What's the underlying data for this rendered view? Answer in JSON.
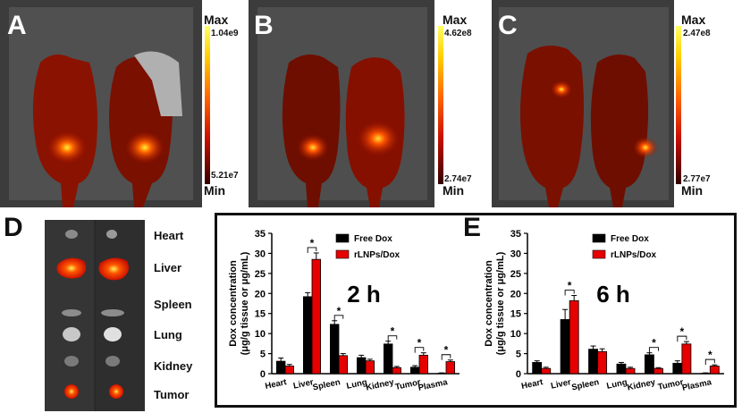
{
  "panels": {
    "A": {
      "letter": "A",
      "max_label": "Max",
      "min_label": "Min",
      "max_value": "1.04e9",
      "min_value": "5.21e7"
    },
    "B": {
      "letter": "B",
      "max_label": "Max",
      "min_label": "Min",
      "max_value": "4.62e8",
      "min_value": "2.74e7"
    },
    "C": {
      "letter": "C",
      "max_label": "Max",
      "min_label": "Min",
      "max_value": "2.47e8",
      "min_value": "2.77e7"
    },
    "D": {
      "letter": "D",
      "organs": [
        "Heart",
        "Liver",
        "Spleen",
        "Lung",
        "Kidney",
        "Tumor"
      ]
    },
    "E": {
      "letter": "E"
    }
  },
  "colors": {
    "free": "#000000",
    "rlnp": "#e60000",
    "heat_hot": "#ffee33",
    "heat_mid": "#dd2200",
    "heat_low": "#5a0000"
  },
  "chart_data": [
    {
      "type": "bar",
      "title": "2 h",
      "ylabel": "Dox concentration (μg/g tissue or μg/mL)",
      "ylabel_line1": "Dox concentration",
      "ylabel_line2": "(μg/g tissue or μg/mL)",
      "ylim": [
        0,
        35
      ],
      "yticks": [
        0,
        5,
        10,
        15,
        20,
        25,
        30,
        35
      ],
      "categories": [
        "Heart",
        "Liver",
        "Spleen",
        "Lung",
        "Kidney",
        "Tumor",
        "Plasma"
      ],
      "series": [
        {
          "name": "Free Dox",
          "values": [
            3.1,
            19.2,
            12.3,
            4.0,
            7.4,
            1.6,
            0.1
          ],
          "errors": [
            0.8,
            1.0,
            0.9,
            0.6,
            0.7,
            0.4,
            0.1
          ]
        },
        {
          "name": "rLNPs/Dox",
          "values": [
            1.9,
            28.5,
            4.5,
            3.2,
            1.5,
            4.6,
            3.0
          ],
          "errors": [
            0.4,
            1.6,
            0.5,
            0.4,
            0.3,
            0.6,
            0.4
          ]
        }
      ],
      "significance": [
        "*",
        "*",
        "*",
        "*",
        "*"
      ],
      "significance_cats": [
        1,
        2,
        4,
        5,
        6
      ],
      "legend": "top-right"
    },
    {
      "type": "bar",
      "title": "6 h",
      "ylabel": "Dox concentration (μg/g tissue or μg/mL)",
      "ylabel_line1": "Dox concentration",
      "ylabel_line2": "(μg/g tissue or μg/mL)",
      "ylim": [
        0,
        35
      ],
      "yticks": [
        0,
        5,
        10,
        15,
        20,
        25,
        30,
        35
      ],
      "categories": [
        "Heart",
        "Liver",
        "Spleen",
        "Lung",
        "Kidney",
        "Tumor",
        "Plasma"
      ],
      "series": [
        {
          "name": "Free Dox",
          "values": [
            2.8,
            13.5,
            6.1,
            2.4,
            4.7,
            2.6,
            0.1
          ],
          "errors": [
            0.4,
            2.5,
            0.8,
            0.4,
            0.5,
            0.6,
            0.1
          ]
        },
        {
          "name": "rLNPs/Dox",
          "values": [
            1.3,
            18.2,
            5.5,
            1.3,
            1.3,
            7.4,
            1.9
          ],
          "errors": [
            0.3,
            1.3,
            0.7,
            0.3,
            0.2,
            0.6,
            0.3
          ]
        }
      ],
      "significance": [
        "*",
        "*",
        "*",
        "*"
      ],
      "significance_cats": [
        1,
        4,
        5,
        6
      ],
      "legend": "top-right"
    }
  ]
}
